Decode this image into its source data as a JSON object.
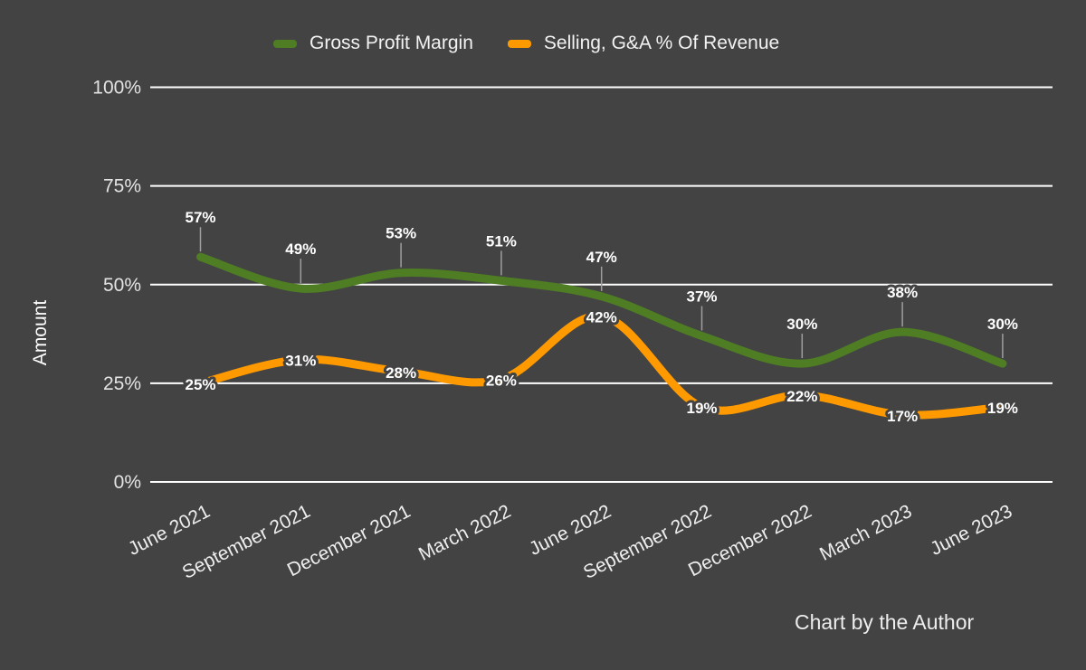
{
  "app": {
    "background_color": "#434343",
    "gridline_color": "#ffffff",
    "stem_color": "#9e9e9e"
  },
  "legend": {
    "position": "top",
    "items": [
      {
        "label": "Gross Profit Margin",
        "color": "#4e7d24"
      },
      {
        "label": "Selling, G&A % Of Revenue",
        "color": "#ff9900"
      }
    ]
  },
  "y_axis": {
    "title": "Amount",
    "tick_labels": [
      "0%",
      "25%",
      "50%",
      "75%",
      "100%"
    ]
  },
  "footer": {
    "credit": "Chart by the Author"
  },
  "chart_data": {
    "type": "line",
    "title": "",
    "xlabel": "",
    "ylabel": "Amount",
    "ylim": [
      0,
      100
    ],
    "y_ticks": [
      0,
      25,
      50,
      75,
      100
    ],
    "y_tick_suffix": "%",
    "grid": true,
    "legend_position": "top",
    "curve": "smooth",
    "categories": [
      "June 2021",
      "September 2021",
      "December 2021",
      "March 2022",
      "June 2022",
      "September 2022",
      "December 2022",
      "March 2023",
      "June 2023"
    ],
    "series": [
      {
        "name": "Gross Profit Margin",
        "color": "#4e7d24",
        "values": [
          57,
          49,
          53,
          51,
          47,
          37,
          30,
          38,
          30
        ],
        "data_labels": [
          "57%",
          "49%",
          "53%",
          "51%",
          "47%",
          "37%",
          "30%",
          "38%",
          "30%"
        ],
        "label_placement": "above-with-stem"
      },
      {
        "name": "Selling, G&A % Of Revenue",
        "color": "#ff9900",
        "values": [
          25,
          31,
          28,
          26,
          42,
          19,
          22,
          17,
          19
        ],
        "data_labels": [
          "25%",
          "31%",
          "28%",
          "26%",
          "42%",
          "19%",
          "22%",
          "17%",
          "19%"
        ],
        "label_placement": "on-point"
      }
    ]
  }
}
